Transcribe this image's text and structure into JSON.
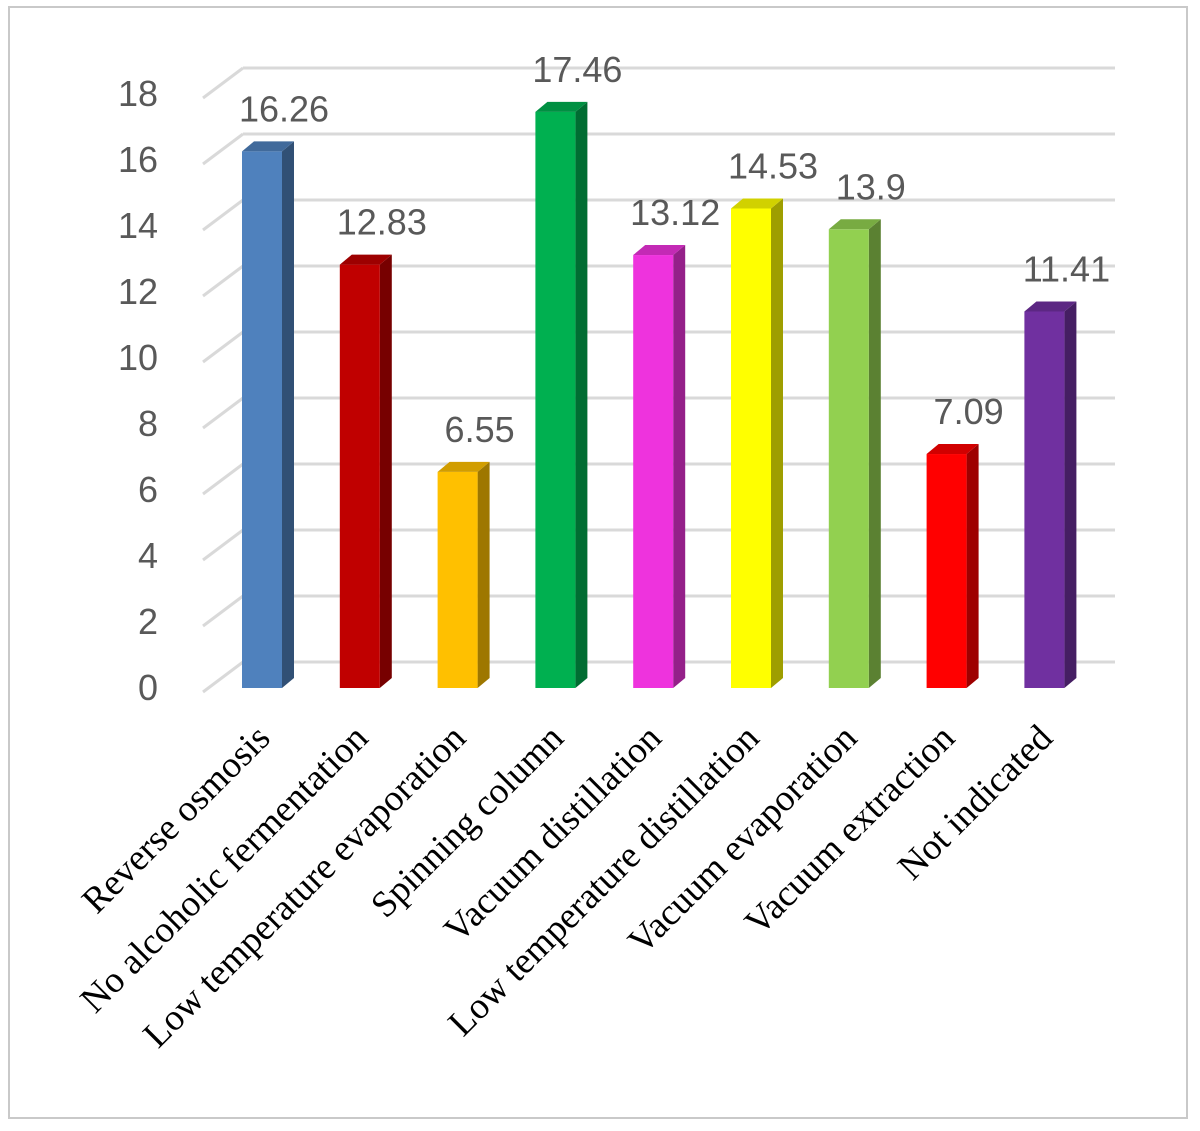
{
  "chart_data": {
    "type": "bar",
    "style": "3d-column",
    "categories": [
      "Reverse osmosis",
      "No alcoholic fermentation",
      "Low temperature evaporation",
      "Spinning column",
      "Vacuum distillation",
      "Low temperature distillation",
      "Vacuum evaporation",
      "Vacuum extraction",
      "Not indicated"
    ],
    "values": [
      16.26,
      12.83,
      6.55,
      17.46,
      13.12,
      14.53,
      13.9,
      7.09,
      11.41
    ],
    "value_labels": [
      "16.26",
      "12.83",
      "6.55",
      "17.46",
      "13.12",
      "14.53",
      "13.9",
      "7.09",
      "11.41"
    ],
    "colors": [
      "#4f81bd",
      "#c00000",
      "#ffc000",
      "#00b050",
      "#ee33dd",
      "#ffff00",
      "#92d050",
      "#ff0000",
      "#7030a0"
    ],
    "y_ticks": [
      "0",
      "2",
      "4",
      "6",
      "8",
      "10",
      "12",
      "14",
      "16",
      "18"
    ],
    "ylim": [
      0,
      18
    ],
    "grid": true,
    "legend": false,
    "title": "",
    "xlabel": "",
    "ylabel": ""
  }
}
